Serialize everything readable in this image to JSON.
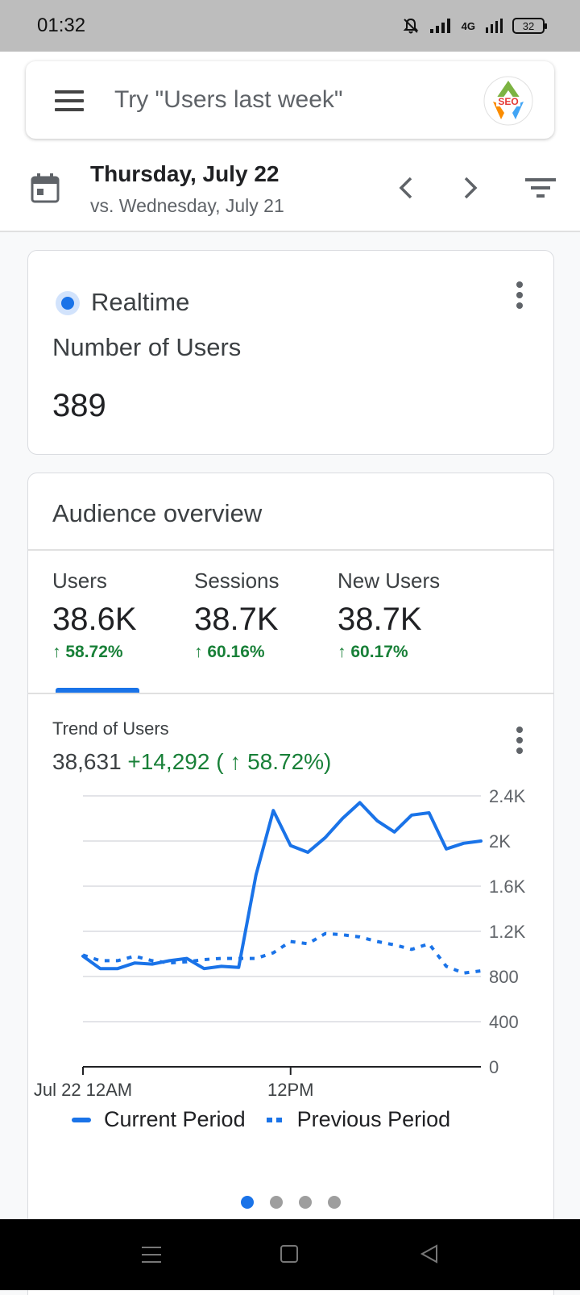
{
  "status_bar": {
    "time": "01:32",
    "network": "4G",
    "battery": "32"
  },
  "search": {
    "placeholder": "Try \"Users last week\"",
    "logo_text": "SEO"
  },
  "date": {
    "title": "Thursday, July 22",
    "compare": "vs. Wednesday, July 21"
  },
  "realtime": {
    "label": "Realtime",
    "metric": "Number of Users",
    "value": "389"
  },
  "audience": {
    "title": "Audience overview",
    "metrics": [
      {
        "label": "Users",
        "value": "38.6K",
        "change": "↑ 58.72%"
      },
      {
        "label": "Sessions",
        "value": "38.7K",
        "change": "↑ 60.16%"
      },
      {
        "label": "New Users",
        "value": "38.7K",
        "change": "↑ 60.17%"
      }
    ],
    "trend_label": "Trend of Users",
    "trend_total": "38,631",
    "trend_delta": "+14,292 ( ↑ 58.72%)"
  },
  "chart_data": {
    "type": "line",
    "x": [
      0,
      1,
      2,
      3,
      4,
      5,
      6,
      7,
      8,
      9,
      10,
      11,
      12,
      13,
      14,
      15,
      16,
      17,
      18,
      19,
      20,
      21,
      22,
      23
    ],
    "x_tick_labels": [
      "Jul 22 12AM",
      "12PM"
    ],
    "y_tick_labels": [
      "0",
      "400",
      "800",
      "1.2K",
      "1.6K",
      "2K",
      "2.4K"
    ],
    "ylim": [
      0,
      2400
    ],
    "grid": true,
    "legend_placement": "bottom",
    "series": [
      {
        "name": "Current Period",
        "style": "solid",
        "color": "#1a73e8",
        "values": [
          980,
          870,
          870,
          920,
          910,
          940,
          960,
          870,
          890,
          880,
          1700,
          2270,
          1960,
          1900,
          2030,
          2200,
          2340,
          2180,
          2080,
          2230,
          2250,
          1930,
          1980,
          2000
        ]
      },
      {
        "name": "Previous Period",
        "style": "dashed",
        "color": "#1a73e8",
        "values": [
          990,
          940,
          940,
          980,
          940,
          920,
          930,
          950,
          960,
          960,
          960,
          1010,
          1110,
          1090,
          1180,
          1170,
          1150,
          1110,
          1080,
          1040,
          1090,
          890,
          830,
          850
        ]
      }
    ]
  },
  "pager": {
    "pages": 4,
    "active": 0
  }
}
